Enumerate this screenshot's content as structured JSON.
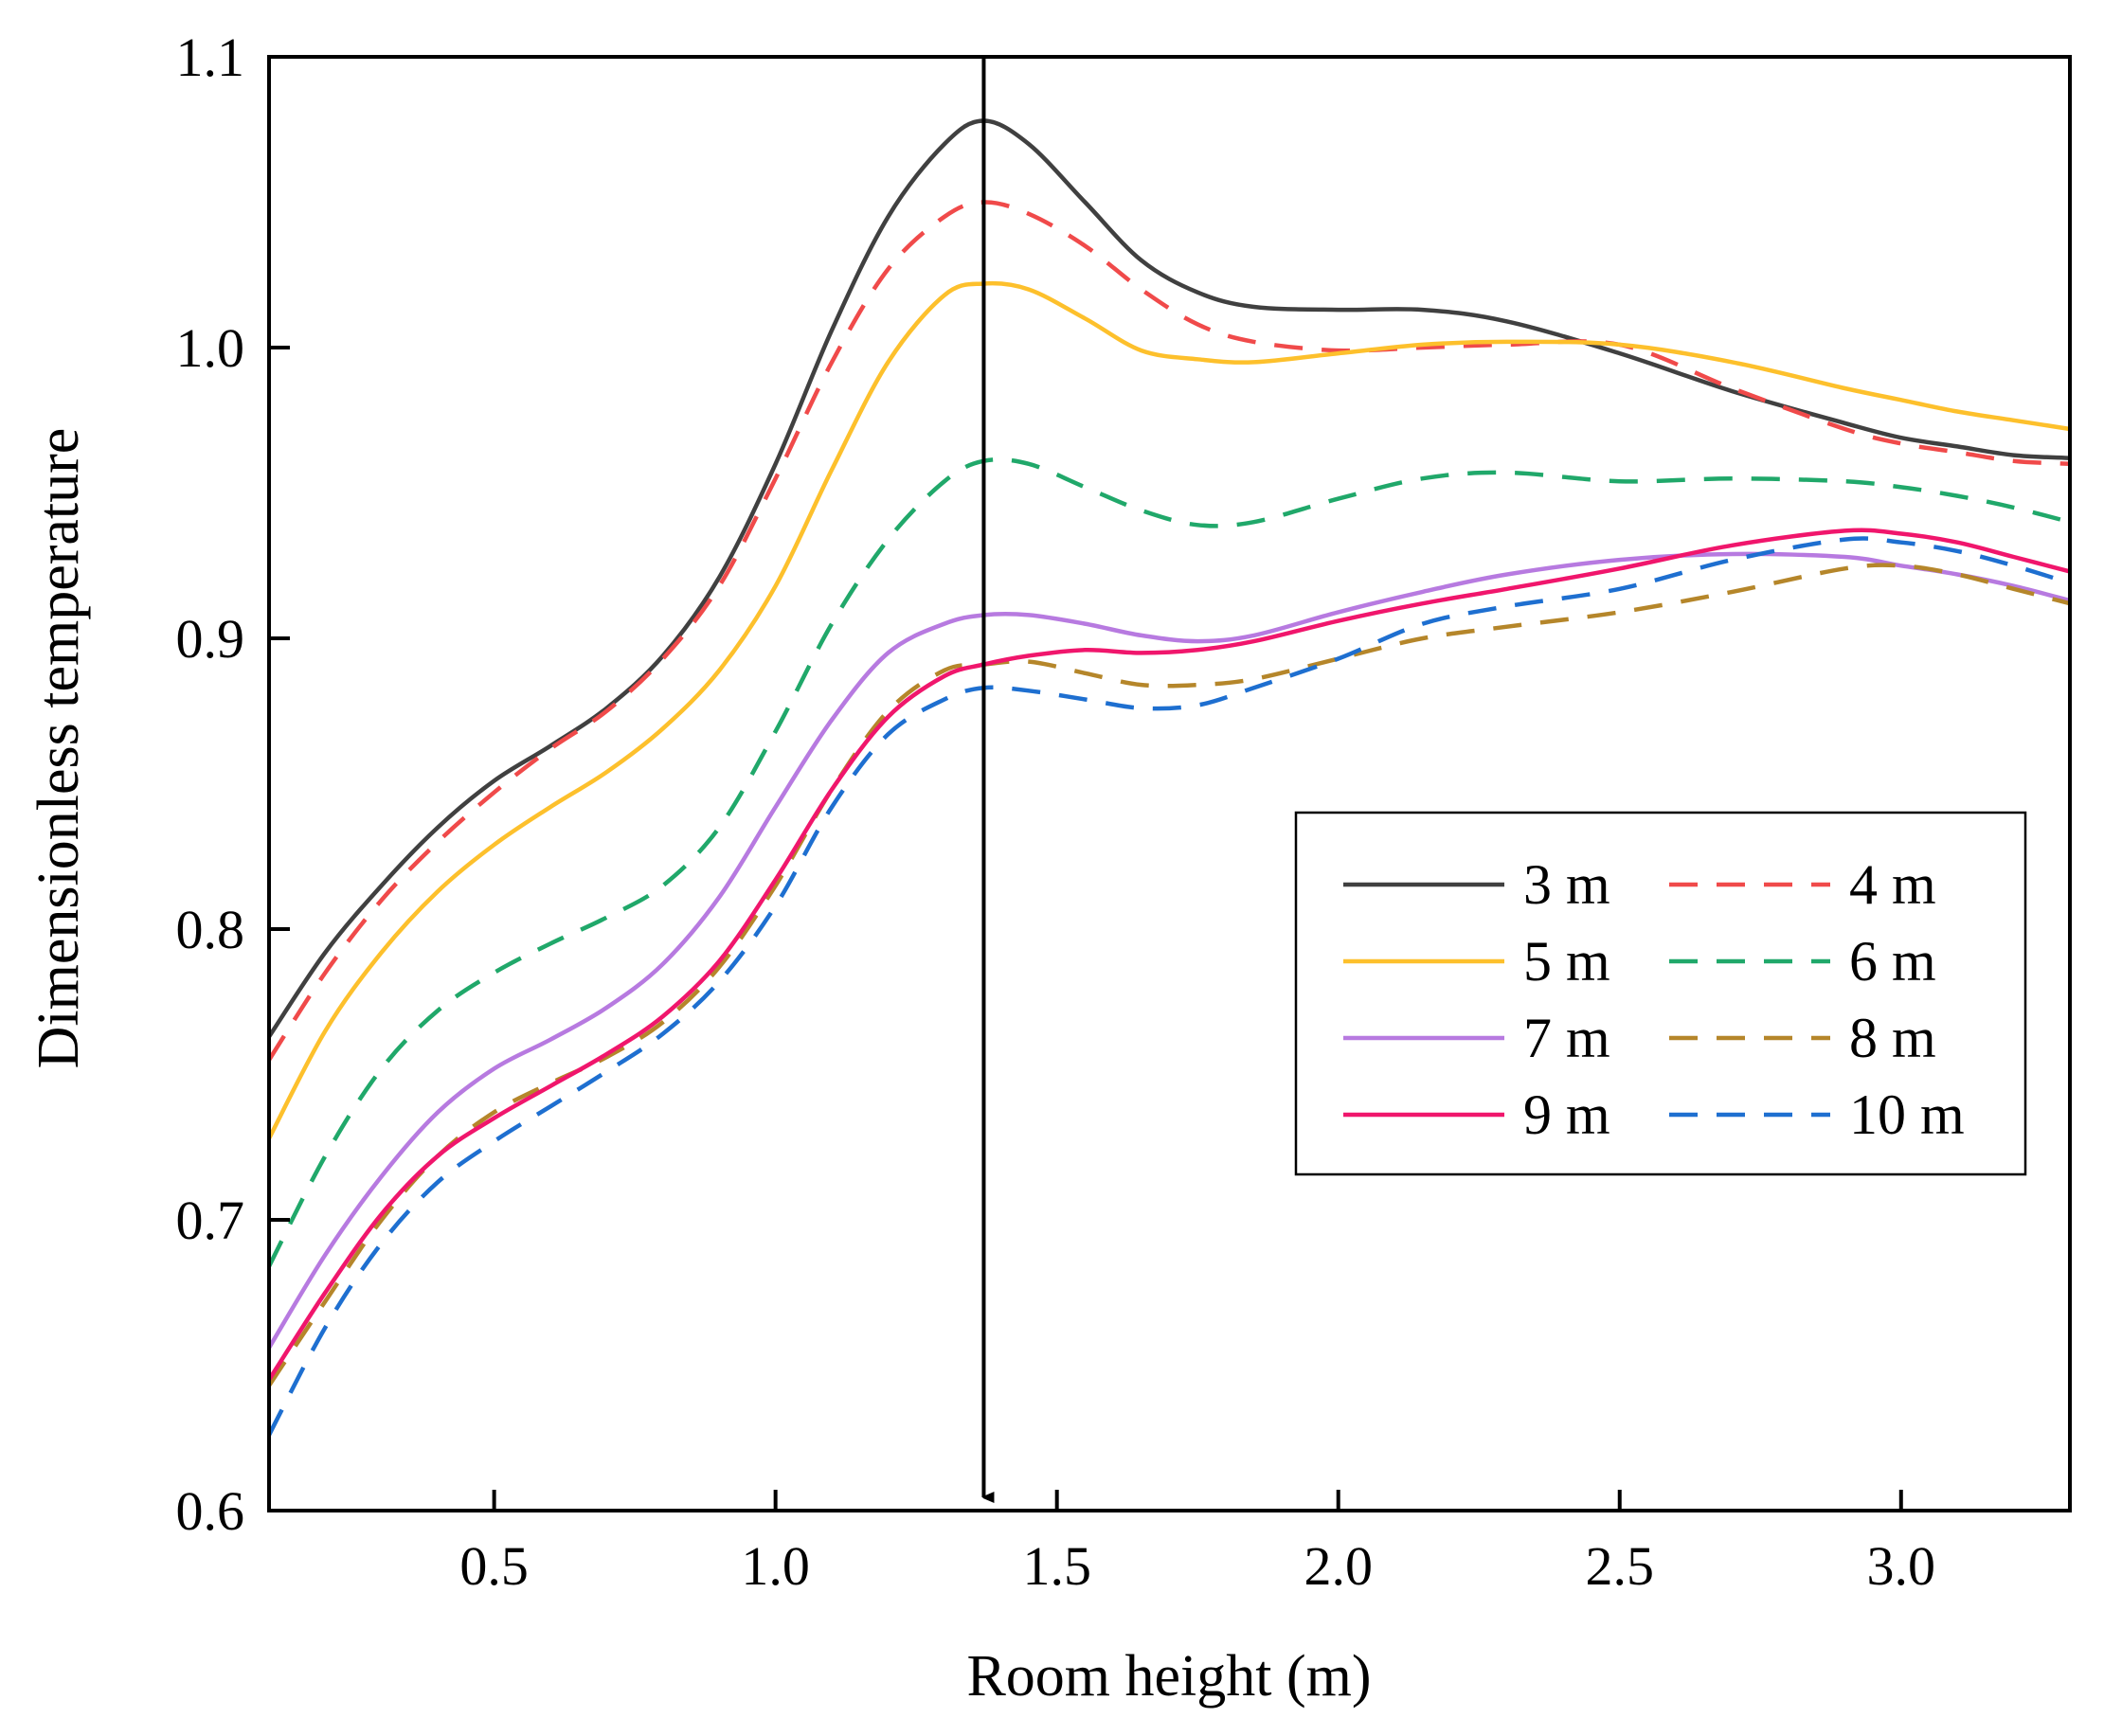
{
  "chart_data": {
    "type": "line",
    "title": "",
    "xlabel": "Room height (m)",
    "ylabel": "Dimensionless temperature",
    "xlim": [
      0.1,
      3.3
    ],
    "ylim": [
      0.6,
      1.1
    ],
    "xticks": [
      0.5,
      1.0,
      1.5,
      2.0,
      2.5,
      3.0
    ],
    "xtick_labels": [
      "0.5",
      "1.0",
      "1.5",
      "2.0",
      "2.5",
      "3.0"
    ],
    "yticks": [
      0.6,
      0.7,
      0.8,
      0.9,
      1.0,
      1.1
    ],
    "ytick_labels": [
      "0.6",
      "0.7",
      "0.8",
      "0.9",
      "1.0",
      "1.1"
    ],
    "grid": false,
    "legend_position": "center-right",
    "annotation": {
      "type": "vertical-arrow",
      "x": 1.37,
      "direction": "down"
    },
    "series": [
      {
        "name": "3 m",
        "style": "solid",
        "color": "#404040",
        "x": [
          0.1,
          0.2,
          0.3,
          0.4,
          0.5,
          0.6,
          0.7,
          0.8,
          0.9,
          1.0,
          1.1,
          1.2,
          1.3,
          1.37,
          1.45,
          1.55,
          1.65,
          1.75,
          1.85,
          2.0,
          2.15,
          2.3,
          2.5,
          2.7,
          2.9,
          3.0,
          3.1,
          3.2,
          3.3
        ],
        "y": [
          0.763,
          0.792,
          0.815,
          0.835,
          0.851,
          0.863,
          0.876,
          0.894,
          0.921,
          0.96,
          1.006,
          1.045,
          1.07,
          1.078,
          1.07,
          1.05,
          1.03,
          1.019,
          1.014,
          1.013,
          1.013,
          1.009,
          0.998,
          0.985,
          0.974,
          0.969,
          0.966,
          0.963,
          0.962
        ]
      },
      {
        "name": "4 m",
        "style": "dashed",
        "color": "#f04a4a",
        "x": [
          0.1,
          0.2,
          0.3,
          0.4,
          0.5,
          0.6,
          0.7,
          0.8,
          0.9,
          1.0,
          1.1,
          1.2,
          1.3,
          1.37,
          1.45,
          1.55,
          1.65,
          1.75,
          1.85,
          2.0,
          2.15,
          2.3,
          2.5,
          2.7,
          2.9,
          3.0,
          3.1,
          3.2,
          3.3
        ],
        "y": [
          0.755,
          0.785,
          0.81,
          0.83,
          0.847,
          0.862,
          0.875,
          0.893,
          0.918,
          0.955,
          0.995,
          1.027,
          1.045,
          1.05,
          1.046,
          1.035,
          1.02,
          1.008,
          1.002,
          0.999,
          1.0,
          1.001,
          1.001,
          0.986,
          0.972,
          0.967,
          0.964,
          0.961,
          0.96
        ]
      },
      {
        "name": "5 m",
        "style": "solid",
        "color": "#fdc02c",
        "x": [
          0.1,
          0.2,
          0.3,
          0.4,
          0.5,
          0.6,
          0.7,
          0.8,
          0.9,
          1.0,
          1.1,
          1.2,
          1.3,
          1.37,
          1.45,
          1.55,
          1.65,
          1.75,
          1.85,
          2.0,
          2.15,
          2.3,
          2.5,
          2.7,
          2.9,
          3.0,
          3.1,
          3.2,
          3.3
        ],
        "y": [
          0.728,
          0.765,
          0.792,
          0.813,
          0.829,
          0.842,
          0.854,
          0.869,
          0.889,
          0.918,
          0.958,
          0.995,
          1.018,
          1.022,
          1.02,
          1.01,
          0.999,
          0.996,
          0.995,
          0.998,
          1.001,
          1.002,
          1.001,
          0.995,
          0.986,
          0.982,
          0.978,
          0.975,
          0.972
        ]
      },
      {
        "name": "6 m",
        "style": "dashed",
        "color": "#20a86a",
        "x": [
          0.1,
          0.2,
          0.3,
          0.4,
          0.5,
          0.6,
          0.7,
          0.8,
          0.9,
          1.0,
          1.1,
          1.2,
          1.3,
          1.37,
          1.45,
          1.55,
          1.65,
          1.75,
          1.85,
          2.0,
          2.15,
          2.3,
          2.5,
          2.7,
          2.9,
          3.0,
          3.1,
          3.2,
          3.3
        ],
        "y": [
          0.684,
          0.722,
          0.752,
          0.772,
          0.785,
          0.795,
          0.804,
          0.815,
          0.835,
          0.868,
          0.905,
          0.934,
          0.954,
          0.961,
          0.96,
          0.952,
          0.944,
          0.939,
          0.94,
          0.948,
          0.955,
          0.957,
          0.954,
          0.955,
          0.954,
          0.952,
          0.949,
          0.945,
          0.94
        ]
      },
      {
        "name": "7 m",
        "style": "solid",
        "color": "#b77ae0",
        "x": [
          0.1,
          0.2,
          0.3,
          0.4,
          0.5,
          0.6,
          0.7,
          0.8,
          0.9,
          1.0,
          1.1,
          1.2,
          1.3,
          1.37,
          1.45,
          1.55,
          1.65,
          1.75,
          1.85,
          2.0,
          2.15,
          2.3,
          2.5,
          2.7,
          2.9,
          3.0,
          3.1,
          3.2,
          3.3
        ],
        "y": [
          0.656,
          0.688,
          0.715,
          0.737,
          0.752,
          0.762,
          0.773,
          0.788,
          0.811,
          0.842,
          0.872,
          0.895,
          0.905,
          0.908,
          0.908,
          0.905,
          0.901,
          0.899,
          0.901,
          0.909,
          0.916,
          0.922,
          0.927,
          0.929,
          0.928,
          0.925,
          0.922,
          0.918,
          0.913
        ]
      },
      {
        "name": "8 m",
        "style": "dashed",
        "color": "#b5862a",
        "x": [
          0.1,
          0.2,
          0.3,
          0.4,
          0.5,
          0.6,
          0.7,
          0.8,
          0.9,
          1.0,
          1.1,
          1.2,
          1.3,
          1.37,
          1.45,
          1.55,
          1.65,
          1.75,
          1.85,
          2.0,
          2.15,
          2.3,
          2.5,
          2.7,
          2.9,
          3.0,
          3.1,
          3.2,
          3.3
        ],
        "y": [
          0.643,
          0.672,
          0.7,
          0.722,
          0.737,
          0.747,
          0.756,
          0.768,
          0.787,
          0.815,
          0.848,
          0.875,
          0.889,
          0.891,
          0.892,
          0.888,
          0.884,
          0.884,
          0.886,
          0.893,
          0.9,
          0.904,
          0.909,
          0.916,
          0.924,
          0.925,
          0.922,
          0.917,
          0.912
        ]
      },
      {
        "name": "9 m",
        "style": "solid",
        "color": "#f0166c",
        "x": [
          0.1,
          0.2,
          0.3,
          0.4,
          0.5,
          0.6,
          0.7,
          0.8,
          0.9,
          1.0,
          1.1,
          1.2,
          1.3,
          1.37,
          1.45,
          1.55,
          1.65,
          1.75,
          1.85,
          2.0,
          2.15,
          2.3,
          2.5,
          2.7,
          2.9,
          3.0,
          3.1,
          3.2,
          3.3
        ],
        "y": [
          0.645,
          0.675,
          0.702,
          0.722,
          0.735,
          0.746,
          0.757,
          0.77,
          0.789,
          0.817,
          0.848,
          0.873,
          0.887,
          0.891,
          0.894,
          0.896,
          0.895,
          0.896,
          0.899,
          0.906,
          0.912,
          0.917,
          0.924,
          0.932,
          0.937,
          0.936,
          0.933,
          0.928,
          0.923
        ]
      },
      {
        "name": "10 m",
        "style": "dashed",
        "color": "#1e6fd0",
        "x": [
          0.1,
          0.2,
          0.3,
          0.4,
          0.5,
          0.6,
          0.7,
          0.8,
          0.9,
          1.0,
          1.1,
          1.2,
          1.3,
          1.37,
          1.45,
          1.55,
          1.65,
          1.75,
          1.85,
          2.0,
          2.15,
          2.3,
          2.5,
          2.7,
          2.9,
          3.0,
          3.1,
          3.2,
          3.3
        ],
        "y": [
          0.626,
          0.663,
          0.692,
          0.713,
          0.727,
          0.739,
          0.751,
          0.764,
          0.782,
          0.808,
          0.842,
          0.867,
          0.879,
          0.883,
          0.882,
          0.879,
          0.876,
          0.877,
          0.883,
          0.893,
          0.905,
          0.911,
          0.917,
          0.927,
          0.934,
          0.933,
          0.93,
          0.925,
          0.919
        ]
      }
    ]
  }
}
